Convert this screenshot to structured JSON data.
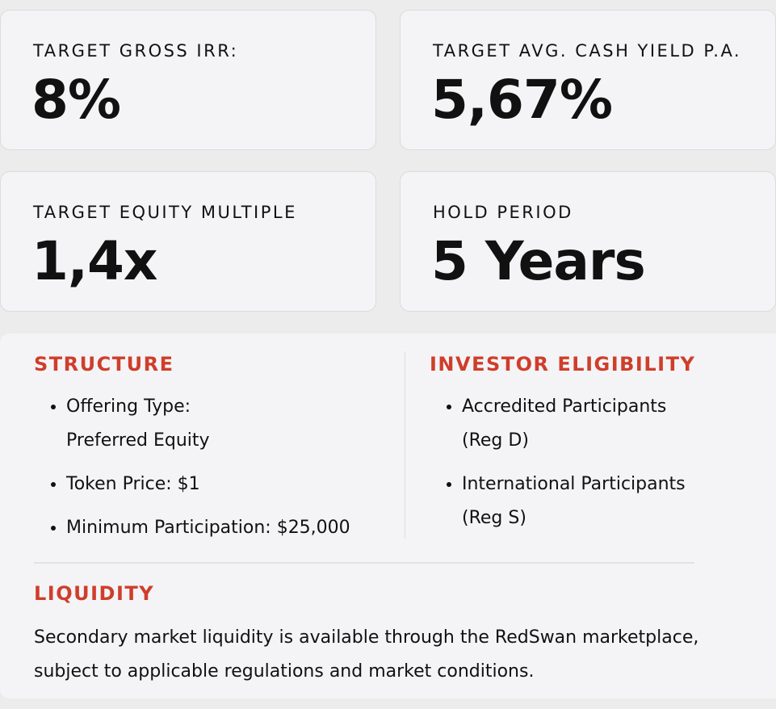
{
  "metrics": [
    {
      "label": "TARGET GROSS IRR:",
      "value": "8%"
    },
    {
      "label": "TARGET AVG. CASH YIELD P.A.",
      "value": "5,67%"
    },
    {
      "label": "TARGET EQUITY MULTIPLE",
      "value": "1,4x"
    },
    {
      "label": "HOLD PERIOD",
      "value": "5 Years"
    }
  ],
  "structure": {
    "title": "STRUCTURE",
    "items": [
      "Offering Type:\nPreferred Equity",
      "Token Price: $1",
      "Minimum Participation: $25,000"
    ]
  },
  "eligibility": {
    "title": "INVESTOR ELIGIBILITY",
    "items": [
      "Accredited Participants (Reg D)",
      "International Participants (Reg S)"
    ]
  },
  "liquidity": {
    "title": "LIQUIDITY",
    "text": "Secondary market liquidity is available through the RedSwan marketplace, subject to applicable regulations and market conditions."
  }
}
